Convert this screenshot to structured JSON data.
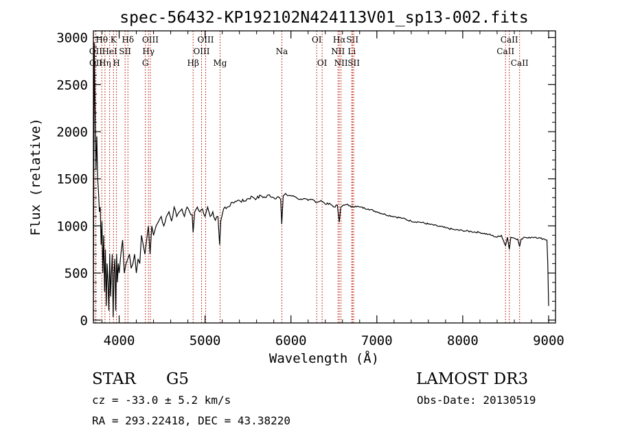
{
  "chart_data": {
    "type": "line",
    "title": "spec-56432-KP192102N424113V01_sp13-002.fits",
    "xlabel": "Wavelength (Å)",
    "ylabel": "Flux (relative)",
    "xlim": [
      3700,
      9080
    ],
    "ylim": [
      -30,
      3070
    ],
    "x_ticks": [
      4000,
      5000,
      6000,
      7000,
      8000,
      9000
    ],
    "y_ticks": [
      0,
      500,
      1000,
      1500,
      2000,
      2500,
      3000
    ],
    "series": [
      {
        "name": "flux",
        "x": [
          3700,
          3710,
          3720,
          3730,
          3740,
          3750,
          3760,
          3770,
          3780,
          3790,
          3800,
          3810,
          3820,
          3830,
          3840,
          3850,
          3860,
          3870,
          3880,
          3890,
          3900,
          3910,
          3920,
          3930,
          3940,
          3950,
          3960,
          3970,
          3980,
          3990,
          4000,
          4020,
          4040,
          4060,
          4080,
          4100,
          4120,
          4140,
          4160,
          4180,
          4200,
          4220,
          4240,
          4260,
          4280,
          4300,
          4320,
          4340,
          4360,
          4380,
          4400,
          4430,
          4460,
          4490,
          4520,
          4550,
          4580,
          4610,
          4640,
          4670,
          4700,
          4730,
          4760,
          4790,
          4820,
          4850,
          4861,
          4880,
          4910,
          4940,
          4970,
          5000,
          5030,
          5060,
          5090,
          5120,
          5150,
          5170,
          5183,
          5200,
          5230,
          5260,
          5290,
          5320,
          5350,
          5400,
          5450,
          5500,
          5550,
          5600,
          5650,
          5700,
          5750,
          5800,
          5850,
          5880,
          5893,
          5910,
          5950,
          6000,
          6050,
          6100,
          6150,
          6200,
          6250,
          6300,
          6350,
          6400,
          6450,
          6500,
          6540,
          6563,
          6580,
          6620,
          6660,
          6700,
          6750,
          6800,
          6900,
          7000,
          7100,
          7200,
          7300,
          7400,
          7500,
          7600,
          7700,
          7800,
          7900,
          8000,
          8100,
          8200,
          8300,
          8400,
          8450,
          8498,
          8520,
          8542,
          8560,
          8600,
          8640,
          8662,
          8680,
          8720,
          8760,
          8800,
          8850,
          8900,
          8950,
          8980,
          8990,
          9000
        ],
        "values": [
          0,
          2950,
          2200,
          1600,
          1950,
          1500,
          1350,
          1150,
          1200,
          800,
          1050,
          500,
          900,
          300,
          750,
          150,
          600,
          400,
          100,
          700,
          250,
          500,
          700,
          30,
          500,
          650,
          100,
          700,
          400,
          600,
          500,
          700,
          850,
          500,
          600,
          650,
          700,
          550,
          600,
          700,
          500,
          650,
          600,
          900,
          800,
          700,
          850,
          1000,
          700,
          1000,
          900,
          1000,
          1050,
          1100,
          1000,
          1100,
          1150,
          1050,
          1200,
          1100,
          1150,
          1180,
          1100,
          1200,
          1150,
          1120,
          930,
          1150,
          1200,
          1150,
          1180,
          1100,
          1200,
          1100,
          1150,
          1060,
          1100,
          800,
          1050,
          1120,
          1200,
          1200,
          1210,
          1250,
          1260,
          1270,
          1260,
          1290,
          1310,
          1290,
          1320,
          1300,
          1330,
          1300,
          1310,
          1280,
          1020,
          1320,
          1330,
          1320,
          1310,
          1280,
          1290,
          1270,
          1280,
          1250,
          1270,
          1230,
          1240,
          1200,
          1220,
          1040,
          1200,
          1220,
          1230,
          1200,
          1210,
          1200,
          1180,
          1150,
          1120,
          1100,
          1080,
          1050,
          1040,
          1020,
          1000,
          980,
          960,
          950,
          940,
          930,
          910,
          880,
          900,
          790,
          880,
          750,
          880,
          870,
          860,
          780,
          860,
          880,
          870,
          880,
          880,
          870,
          860,
          850,
          600,
          150
        ]
      }
    ],
    "line_markers": [
      {
        "label": "OII",
        "wavelength": 3727,
        "row": 2
      },
      {
        "label": "OII",
        "wavelength": 3729,
        "row": 3
      },
      {
        "label": "Hθ",
        "wavelength": 3798,
        "row": 1
      },
      {
        "label": "Hη",
        "wavelength": 3835,
        "row": 3
      },
      {
        "label": "HeI",
        "wavelength": 3889,
        "row": 2
      },
      {
        "label": "K",
        "wavelength": 3934,
        "row": 1
      },
      {
        "label": "H",
        "wavelength": 3969,
        "row": 3
      },
      {
        "label": "SII",
        "wavelength": 4069,
        "row": 2
      },
      {
        "label": "Hδ",
        "wavelength": 4102,
        "row": 1
      },
      {
        "label": "G",
        "wavelength": 4305,
        "row": 3
      },
      {
        "label": "Hγ",
        "wavelength": 4341,
        "row": 2
      },
      {
        "label": "OIII",
        "wavelength": 4363,
        "row": 1
      },
      {
        "label": "Hβ",
        "wavelength": 4861,
        "row": 3
      },
      {
        "label": "OIII",
        "wavelength": 4959,
        "row": 2
      },
      {
        "label": "OIII",
        "wavelength": 5007,
        "row": 1
      },
      {
        "label": "Mg",
        "wavelength": 5175,
        "row": 3
      },
      {
        "label": "Na",
        "wavelength": 5894,
        "row": 2
      },
      {
        "label": "OI",
        "wavelength": 6300,
        "row": 1
      },
      {
        "label": "OI",
        "wavelength": 6363,
        "row": 3
      },
      {
        "label": "NII",
        "wavelength": 6548,
        "row": 2
      },
      {
        "label": "Hα",
        "wavelength": 6563,
        "row": 1
      },
      {
        "label": "NII",
        "wavelength": 6583,
        "row": 3
      },
      {
        "label": "Li",
        "wavelength": 6708,
        "row": 2
      },
      {
        "label": "SII",
        "wavelength": 6716,
        "row": 1
      },
      {
        "label": "SII",
        "wavelength": 6731,
        "row": 3
      },
      {
        "label": "CaII",
        "wavelength": 8498,
        "row": 2
      },
      {
        "label": "CaII",
        "wavelength": 8542,
        "row": 1
      },
      {
        "label": "CaII",
        "wavelength": 8662,
        "row": 3
      }
    ],
    "line_marker_color": "#c0392b"
  },
  "footer": {
    "object_class": "STAR",
    "subclass": "G5",
    "redshift": "cz = -33.0 ± 5.2 km/s",
    "coords": "RA = 293.22418, DEC =  43.38220",
    "survey": "LAMOST DR3",
    "obs_date": "Obs-Date: 20130519"
  }
}
